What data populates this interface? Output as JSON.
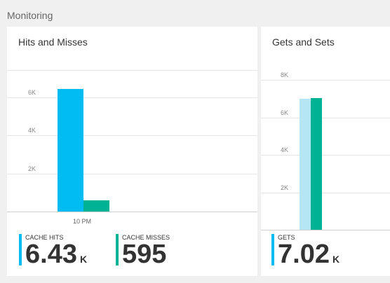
{
  "section_title": "Monitoring",
  "colors": {
    "cache_hits": "#00bcf2",
    "cache_misses": "#00b294",
    "gets_light": "#b4e6f4",
    "gets": "#00b294"
  },
  "hits_tile": {
    "title": "Hits and Misses",
    "x_label": "10 PM",
    "metrics": [
      {
        "label": "CACHE HITS",
        "value": "6.43",
        "unit": "K"
      },
      {
        "label": "CACHE MISSES",
        "value": "595",
        "unit": ""
      }
    ]
  },
  "gets_tile": {
    "title": "Gets and Sets",
    "metrics": [
      {
        "label": "GETS",
        "value": "7.02",
        "unit": "K"
      }
    ]
  },
  "chart_data": [
    {
      "type": "bar",
      "title": "Hits and Misses",
      "categories": [
        "10 PM"
      ],
      "series": [
        {
          "name": "CACHE HITS",
          "values": [
            6430
          ]
        },
        {
          "name": "CACHE MISSES",
          "values": [
            595
          ]
        }
      ],
      "y_ticks": [
        "2K",
        "4K",
        "6K"
      ],
      "ylim": [
        0,
        8000
      ],
      "grid": true
    },
    {
      "type": "bar",
      "title": "Gets and Sets",
      "categories": [
        ""
      ],
      "series": [
        {
          "values": [
            7000
          ]
        },
        {
          "name": "GETS",
          "values": [
            7020
          ]
        }
      ],
      "y_ticks": [
        "2K",
        "4K",
        "6K",
        "8K"
      ],
      "ylim": [
        0,
        8000
      ],
      "grid": true
    }
  ]
}
